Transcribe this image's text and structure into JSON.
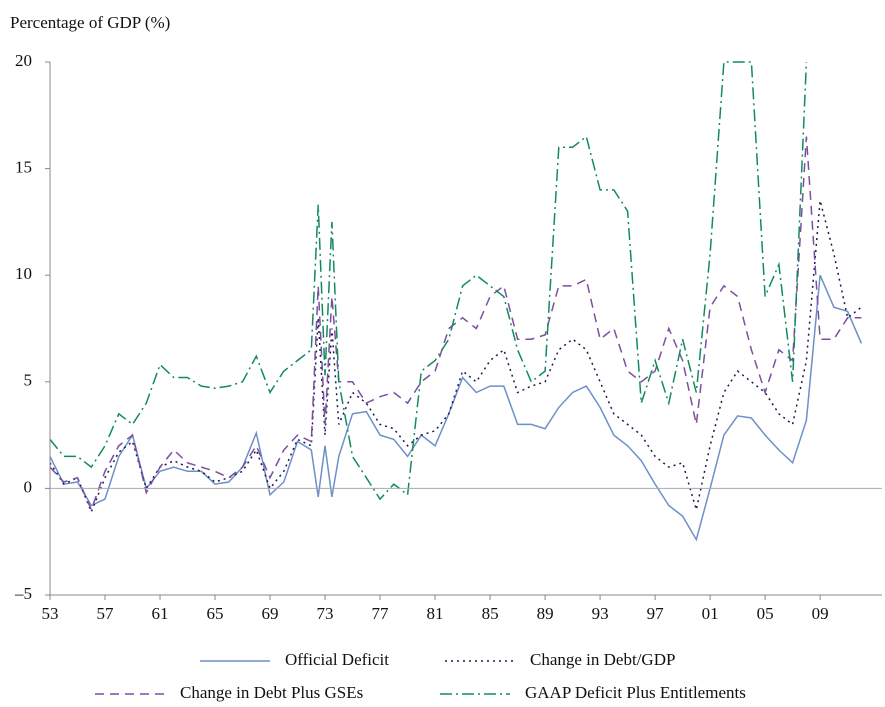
{
  "chart_data": {
    "type": "line",
    "y_label": "Percentage of GDP (%)",
    "x": [
      1953,
      1954,
      1955,
      1956,
      1957,
      1958,
      1959,
      1960,
      1961,
      1962,
      1963,
      1964,
      1965,
      1966,
      1967,
      1968,
      1969,
      1970,
      1971,
      1972,
      1972.5,
      1973,
      1973.5,
      1974,
      1975,
      1976,
      1977,
      1978,
      1979,
      1980,
      1981,
      1982,
      1983,
      1984,
      1985,
      1986,
      1987,
      1988,
      1989,
      1990,
      1991,
      1992,
      1993,
      1994,
      1995,
      1996,
      1997,
      1998,
      1999,
      2000,
      2001,
      2002,
      2003,
      2004,
      2005,
      2006,
      2007,
      2008,
      2009,
      2010,
      2011,
      2012
    ],
    "xlim": [
      1953,
      2013.5
    ],
    "xticks": [
      {
        "value": 1953,
        "label": "53"
      },
      {
        "value": 1957,
        "label": "57"
      },
      {
        "value": 1961,
        "label": "61"
      },
      {
        "value": 1965,
        "label": "65"
      },
      {
        "value": 1969,
        "label": "69"
      },
      {
        "value": 1973,
        "label": "73"
      },
      {
        "value": 1977,
        "label": "77"
      },
      {
        "value": 1981,
        "label": "81"
      },
      {
        "value": 1985,
        "label": "85"
      },
      {
        "value": 1989,
        "label": "89"
      },
      {
        "value": 1993,
        "label": "93"
      },
      {
        "value": 1997,
        "label": "97"
      },
      {
        "value": 2001,
        "label": "01"
      },
      {
        "value": 2005,
        "label": "05"
      },
      {
        "value": 2009,
        "label": "09"
      }
    ],
    "ylim": [
      -5,
      20
    ],
    "yticks": [
      {
        "value": -5,
        "label": "–5"
      },
      0,
      5,
      10,
      15,
      20
    ],
    "series": [
      {
        "name": "Official Deficit",
        "color": "#6e8fc9",
        "dash": "",
        "values": [
          1.5,
          0.2,
          0.3,
          -0.8,
          -0.5,
          1.5,
          2.5,
          0,
          0.8,
          1.0,
          0.8,
          0.8,
          0.2,
          0.3,
          1.0,
          2.6,
          -0.3,
          0.3,
          2.2,
          1.8,
          -0.4,
          2,
          -0.4,
          1.5,
          3.5,
          3.6,
          2.5,
          2.3,
          1.5,
          2.5,
          2.0,
          3.5,
          5.2,
          4.5,
          4.8,
          4.8,
          3.0,
          3.0,
          2.8,
          3.8,
          4.5,
          4.8,
          3.8,
          2.5,
          2.0,
          1.3,
          0.2,
          -0.8,
          -1.3,
          -2.4,
          0,
          2.5,
          3.4,
          3.3,
          2.5,
          1.8,
          1.2,
          3.2,
          10.0,
          8.5,
          8.3,
          6.8
        ]
      },
      {
        "name": "Change in Debt/GDP",
        "color": "#1a1a4e",
        "dash": "2 4",
        "values": [
          1.2,
          0.2,
          0.5,
          -1.1,
          0.5,
          1.7,
          2.2,
          0,
          1.0,
          1.3,
          1.0,
          0.8,
          0.3,
          0.5,
          0.8,
          1.8,
          0,
          0.8,
          2.3,
          2.0,
          8.0,
          2.5,
          7.5,
          3.0,
          4.5,
          4.0,
          3.0,
          2.8,
          2.0,
          2.5,
          2.7,
          3.5,
          5.5,
          5.0,
          6.0,
          6.5,
          4.5,
          4.8,
          5.0,
          6.5,
          7.0,
          6.5,
          5.0,
          3.5,
          3.0,
          2.5,
          1.5,
          1.0,
          1.2,
          -1.0,
          2.0,
          4.5,
          5.5,
          5.0,
          4.5,
          3.5,
          3.0,
          6.0,
          13.5,
          11.0,
          8.0,
          8.5
        ]
      },
      {
        "name": "Change in Debt Plus GSEs",
        "color": "#7b4fa0",
        "dash": "9 6",
        "values": [
          1.0,
          0.3,
          0.5,
          -1.0,
          0.8,
          2.0,
          2.5,
          -0.2,
          1.0,
          1.8,
          1.2,
          1.0,
          0.8,
          0.5,
          1.0,
          2.0,
          0.5,
          1.8,
          2.5,
          2.2,
          9.5,
          3,
          9,
          5.0,
          5.0,
          4.0,
          4.3,
          4.5,
          4.0,
          5.0,
          5.5,
          7.5,
          8.0,
          7.5,
          9.0,
          9.5,
          7.0,
          7.0,
          7.2,
          9.5,
          9.5,
          9.8,
          7.0,
          7.5,
          5.5,
          5.0,
          5.5,
          7.5,
          6.0,
          3.0,
          8.5,
          9.5,
          9.0,
          6.5,
          4.5,
          6.5,
          6.0,
          16.5,
          7.0,
          7.0,
          8.0,
          8.0
        ]
      },
      {
        "name": "GAAP Deficit Plus Entitlements",
        "color": "#138a5e",
        "dash": "12 4 2 4",
        "values": [
          2.3,
          1.5,
          1.5,
          1.0,
          2.0,
          3.5,
          3.0,
          4.0,
          5.8,
          5.2,
          5.2,
          4.8,
          4.7,
          4.8,
          5.0,
          6.2,
          4.5,
          5.5,
          6.0,
          6.5,
          13.3,
          5.3,
          12.5,
          5.0,
          1.5,
          0.5,
          -0.5,
          0.2,
          -0.3,
          5.5,
          6.0,
          7.0,
          9.5,
          10.0,
          9.5,
          9.0,
          6.5,
          5.0,
          5.5,
          16.0,
          16.0,
          16.5,
          14.0,
          14.0,
          13.0,
          4.0,
          6.0,
          4.0,
          7.0,
          4.5,
          11.0,
          20,
          20,
          20,
          9.0,
          10.5,
          5.0,
          20,
          null,
          null,
          null,
          null
        ]
      }
    ]
  }
}
